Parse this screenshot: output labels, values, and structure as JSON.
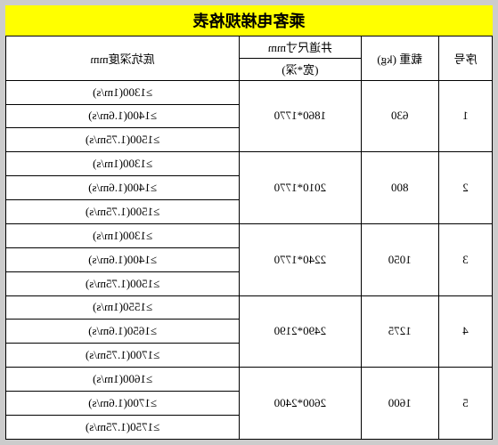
{
  "title": "乘客电梯规格表",
  "headers": {
    "seq": "序号",
    "weight_label": "载重",
    "weight_unit": "(kg)",
    "dim_label": "井道尺寸mm",
    "dim_sub": "(宽*深)",
    "depth": "底坑深度mm"
  },
  "rows": [
    {
      "seq": "1",
      "weight": "630",
      "dim": "1860*1770",
      "depths": [
        "≥1300(1m/s)",
        "≥1400(1.6m/s)",
        "≥1500(1.75m/s)"
      ]
    },
    {
      "seq": "2",
      "weight": "800",
      "dim": "2010*1770",
      "depths": [
        "≥1300(1m/s)",
        "≥1400(1.6m/s)",
        "≥1500(1.75m/s)"
      ]
    },
    {
      "seq": "3",
      "weight": "1050",
      "dim": "2240*1770",
      "depths": [
        "≥1300(1m/s)",
        "≥1400(1.6m/s)",
        "≥1500(1.75m/s)"
      ]
    },
    {
      "seq": "4",
      "weight": "1275",
      "dim": "2490*2190",
      "depths": [
        "≥1550(1m/s)",
        "≥1650(1.6m/s)",
        "≥1700(1.75m/s)"
      ]
    },
    {
      "seq": "5",
      "weight": "1600",
      "dim": "2600*2400",
      "depths": [
        "≥1600(1m/s)",
        "≥1700(1.6m/s)",
        "≥1750(1.75m/s)"
      ]
    }
  ],
  "colors": {
    "title_bg": "#ffff00",
    "border": "#000000",
    "page_bg": "#cccccc",
    "table_bg": "#ffffff"
  },
  "fonts": {
    "title_size": 18,
    "cell_size": 13
  }
}
